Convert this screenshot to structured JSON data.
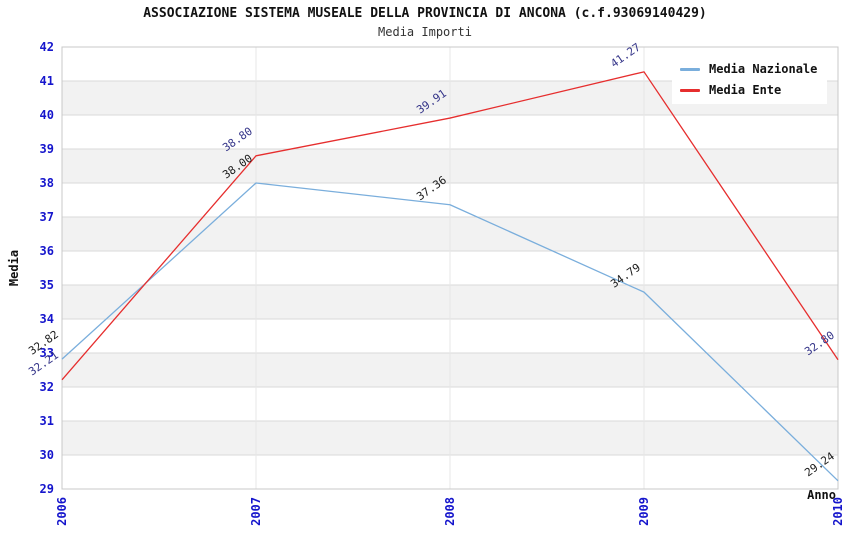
{
  "header": {
    "title": "ASSOCIAZIONE SISTEMA MUSEALE DELLA PROVINCIA DI ANCONA (c.f.93069140429)",
    "subtitle": "Media Importi"
  },
  "legend": {
    "items": [
      {
        "label": "Media Nazionale",
        "color": "#7aaedc"
      },
      {
        "label": "Media Ente",
        "color": "#e62e2e"
      }
    ]
  },
  "colors": {
    "tick_label": "#1515cc",
    "band_gray": "#f2f2f2",
    "grid_h": "#d9d9d9",
    "grid_v": "#e7e7e7",
    "plot_border": "#c8c8c8",
    "label_nazionale": "#1a1a1a",
    "label_ente": "#333388"
  },
  "chart_data": {
    "type": "line",
    "title": "ASSOCIAZIONE SISTEMA MUSEALE DELLA PROVINCIA DI ANCONA (c.f.93069140429)",
    "subtitle": "Media Importi",
    "x": [
      2006,
      2007,
      2008,
      2009,
      2010
    ],
    "xlabel": "Anno",
    "ylabel": "Media",
    "ylim": [
      29,
      42
    ],
    "grid": "horizontal-with-alternating-bands",
    "legend_position": "top-right-inside",
    "series": [
      {
        "name": "Media Nazionale",
        "color": "#7aaedc",
        "label_color": "#1a1a1a",
        "values": [
          32.82,
          38.0,
          37.36,
          34.79,
          29.24
        ],
        "labels": [
          "32.82",
          "38.00",
          "37.36",
          "34.79",
          "29.24"
        ]
      },
      {
        "name": "Media Ente",
        "color": "#e62e2e",
        "label_color": "#333388",
        "values": [
          32.21,
          38.8,
          39.91,
          41.27,
          32.8
        ],
        "labels": [
          "32.21",
          "38.80",
          "39.91",
          "41.27",
          "32.80"
        ]
      }
    ]
  }
}
